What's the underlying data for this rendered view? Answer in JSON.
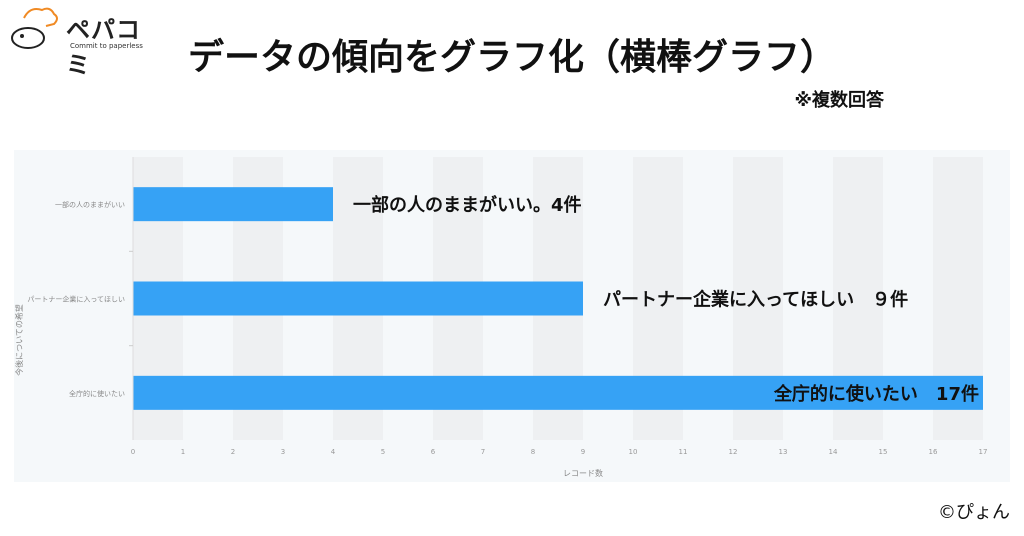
{
  "logo": {
    "name": "ペパコミ",
    "tagline": "Commit to paperless"
  },
  "title": "データの傾向をグラフ化（横棒グラフ）",
  "note": "※複数回答",
  "credit": "©ぴょん",
  "colors": {
    "bar": "#36a2f5",
    "band": "#eef0f2",
    "panel": "#f5f8fa"
  },
  "chart_data": {
    "type": "bar",
    "orientation": "horizontal",
    "categories": [
      "一部の人のままがいい",
      "パートナー企業に入ってほしい",
      "全庁的に使いたい"
    ],
    "values": [
      4,
      9,
      17
    ],
    "annotations": [
      "一部の人のままがいい。4件",
      "パートナー企業に入ってほしい　９件",
      "全庁的に使いたい　17件"
    ],
    "xlabel": "レコード数",
    "ylabel": "今後についての希望",
    "xlim": [
      0,
      17
    ],
    "xticks": [
      0,
      1,
      2,
      3,
      4,
      5,
      6,
      7,
      8,
      9,
      10,
      11,
      12,
      13,
      14,
      15,
      16,
      17
    ],
    "grid": "alternating-bands",
    "legend": "none"
  }
}
